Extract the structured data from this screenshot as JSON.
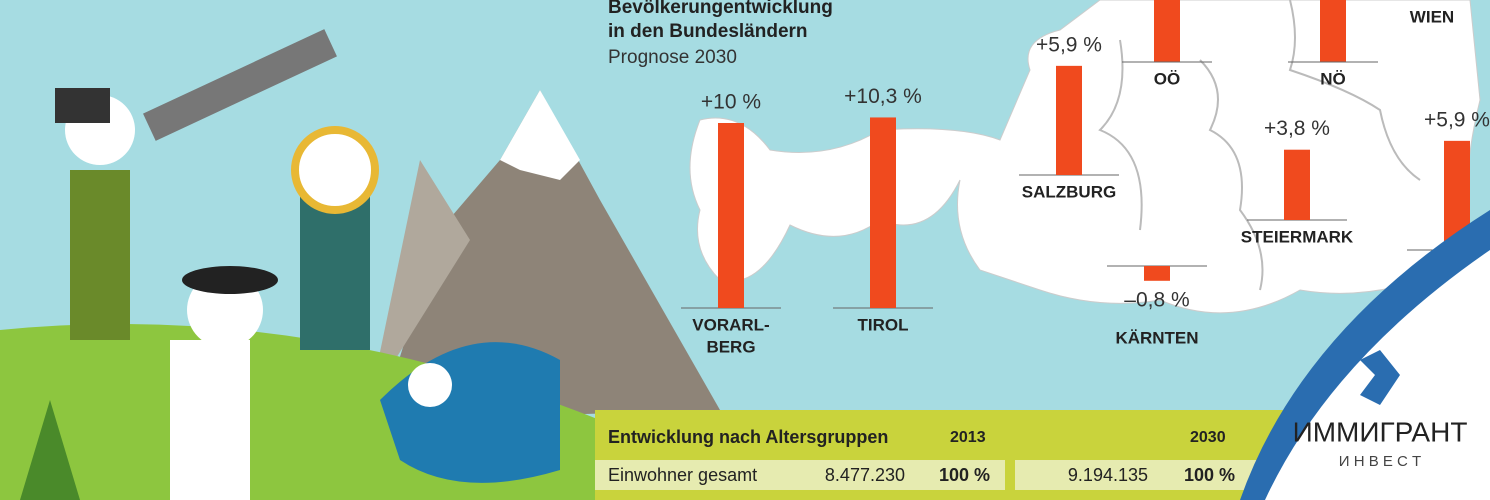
{
  "title": [
    "Bevölkerungentwicklung",
    "in den Bundesländern"
  ],
  "subtitle": "Prognose 2030",
  "regions": [
    {
      "name": [
        "VORARL-",
        "BERG"
      ],
      "value": 10,
      "value_label": "+10 %"
    },
    {
      "name": [
        "TIROL"
      ],
      "value": 10.3,
      "value_label": "+10,3 %"
    },
    {
      "name": [
        "SALZBURG"
      ],
      "value": 5.9,
      "value_label": "+5,9 %"
    },
    {
      "name": [
        "STEIERMARK"
      ],
      "value": 3.8,
      "value_label": "+3,8 %"
    },
    {
      "name": [
        "KÄRNTEN"
      ],
      "value": -0.8,
      "value_label": "–0,8 %"
    },
    {
      "value": 5.9,
      "value_label": "+5,9 %"
    }
  ],
  "cut_regions": [
    "OÖ",
    "NÖ",
    "WIEN"
  ],
  "table": {
    "title": "Entwicklung nach Altersgruppen",
    "years": [
      "2013",
      "2030"
    ],
    "rows": [
      [
        "Einwohner gesamt",
        "8.477.230",
        "100 %",
        "9.194.135",
        "100 %"
      ]
    ]
  },
  "logo": {
    "name": "ИММИГРАНТ",
    "tagline": "И Н В Е С Т"
  }
}
